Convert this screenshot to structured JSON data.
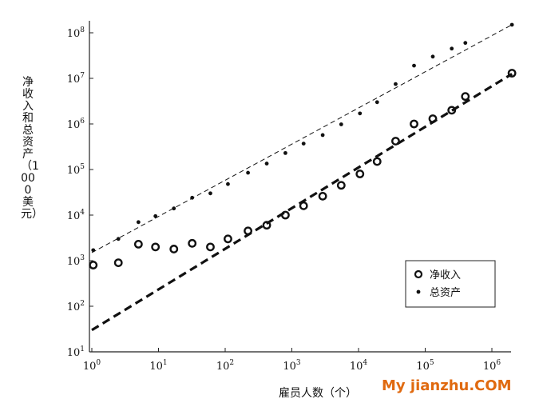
{
  "chart_data": {
    "type": "scatter",
    "title": "",
    "xlabel": "雇员人数（个）",
    "ylabel": "净收入和总资产（1000美元）",
    "x_scale": "log",
    "y_scale": "log",
    "xlim": [
      1,
      3000000
    ],
    "ylim": [
      10,
      200000000
    ],
    "x_ticks": [
      {
        "base": "10",
        "exp": "0"
      },
      {
        "base": "10",
        "exp": "1"
      },
      {
        "base": "10",
        "exp": "2"
      },
      {
        "base": "10",
        "exp": "3"
      },
      {
        "base": "10",
        "exp": "4"
      },
      {
        "base": "10",
        "exp": "5"
      },
      {
        "base": "10",
        "exp": "6"
      }
    ],
    "y_ticks": [
      {
        "base": "10",
        "exp": "1"
      },
      {
        "base": "10",
        "exp": "2"
      },
      {
        "base": "10",
        "exp": "3"
      },
      {
        "base": "10",
        "exp": "4"
      },
      {
        "base": "10",
        "exp": "5"
      },
      {
        "base": "10",
        "exp": "6"
      },
      {
        "base": "10",
        "exp": "7"
      },
      {
        "base": "10",
        "exp": "8"
      }
    ],
    "legend_position": "lower-right",
    "grid": false,
    "series": [
      {
        "name": "净收入",
        "marker": "open-circle",
        "x": [
          1.05,
          2.5,
          5,
          9,
          17,
          32,
          60,
          110,
          220,
          420,
          800,
          1500,
          2900,
          5500,
          10500,
          19000,
          36000,
          68000,
          130000,
          250000,
          400000,
          2000000
        ],
        "y": [
          800,
          900,
          2300,
          2000,
          1800,
          2400,
          2000,
          3000,
          4500,
          6000,
          10000,
          16000,
          26000,
          45000,
          80000,
          150000,
          420000,
          1000000,
          1300000,
          2000000,
          4000000,
          13000000
        ]
      },
      {
        "name": "总资产",
        "marker": "dot",
        "x": [
          1.05,
          2.5,
          5,
          9,
          17,
          32,
          60,
          110,
          220,
          420,
          800,
          1500,
          2900,
          5500,
          10500,
          19000,
          36000,
          68000,
          130000,
          250000,
          400000,
          2000000
        ],
        "y": [
          1700,
          3000,
          7000,
          9500,
          14000,
          24000,
          30000,
          48000,
          85000,
          135000,
          230000,
          370000,
          570000,
          980000,
          1700000,
          3000000,
          7500000,
          19000000,
          30000000,
          45000000,
          60000000,
          150000000
        ]
      }
    ],
    "fit_lines": [
      {
        "series": "净收入",
        "style": "dashed-thick",
        "x": [
          1,
          2000000
        ],
        "y": [
          30,
          12500000
        ]
      },
      {
        "series": "总资产",
        "style": "dashed-thin",
        "x": [
          1,
          2000000
        ],
        "y": [
          1500,
          150000000
        ]
      }
    ]
  },
  "watermark": {
    "text": "My jianzhu",
    "suffix": ".COM"
  }
}
